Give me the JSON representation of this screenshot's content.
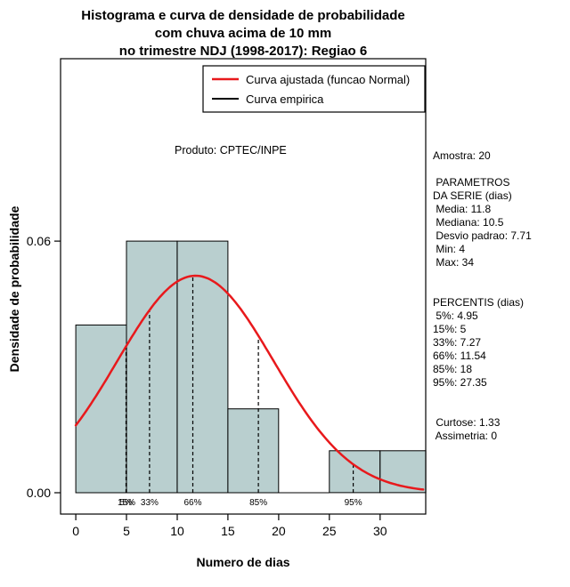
{
  "chart_data": {
    "type": "histogram+line",
    "title": "Histograma e curva de densidade de probabilidade com chuva acima de 10 mm no trimestre NDJ (1998-2017): Regiao 6",
    "title_lines": [
      "Histograma e curva de densidade de probabilidade",
      "com chuva acima de 10 mm",
      "no trimestre NDJ (1998-2017): Regiao 6"
    ],
    "xlabel": "Numero de dias",
    "ylabel": "Densidade de probabilidade",
    "annotation": "Produto: CPTEC/INPE",
    "axes": {
      "xlim": [
        -1.5,
        34.5
      ],
      "ylim": [
        -0.0051,
        0.1035
      ],
      "x_ticks": [
        0,
        5,
        10,
        15,
        20,
        25,
        30
      ],
      "y_ticks": [
        {
          "value": 0,
          "label": "0.00"
        },
        {
          "value": 0.06,
          "label": "0.06"
        }
      ],
      "grid": false
    },
    "histogram": {
      "breaks": [
        0,
        5,
        10,
        15,
        20,
        25,
        30,
        35
      ],
      "densities": [
        0.04,
        0.06,
        0.06,
        0.02,
        0,
        0.01,
        0.01
      ],
      "fill": "#b9cfcf",
      "border": "#000000"
    },
    "normal_curve": {
      "label": "Curva ajustada (funcao Normal)",
      "mean": 11.8,
      "sd": 7.71,
      "color": "#e8191c",
      "x_range": [
        0,
        34.4
      ]
    },
    "percentile_lines": [
      {
        "label": "5%",
        "x": 4.95
      },
      {
        "label": "15%",
        "x": 5
      },
      {
        "label": "33%",
        "x": 7.27
      },
      {
        "label": "66%",
        "x": 11.54
      },
      {
        "label": "85%",
        "x": 18
      },
      {
        "label": "95%",
        "x": 27.35
      }
    ],
    "legend": {
      "position": "topright",
      "entries": [
        {
          "label": "Curva ajustada (funcao Normal)",
          "color": "#e8191c",
          "width": 2.5
        },
        {
          "label": "Curva empirica",
          "color": "#000000",
          "width": 2
        }
      ]
    }
  },
  "side_panel": {
    "lines": [
      "Amostra: 20",
      "",
      " PARAMETROS",
      "DA SERIE (dias)",
      " Media: 11.8",
      " Mediana: 10.5",
      " Desvio padrao: 7.71",
      " Min: 4",
      " Max: 34",
      "",
      "",
      "PERCENTIS (dias)",
      " 5%: 4.95",
      "15%: 5",
      "33%: 7.27",
      "66%: 11.54",
      "85%: 18",
      "95%: 27.35",
      "",
      "",
      " Curtose: 1.33",
      " Assimetria: 0"
    ]
  }
}
